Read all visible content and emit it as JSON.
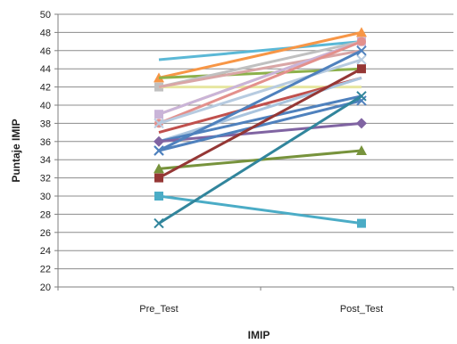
{
  "chart_data": {
    "type": "line",
    "title": "",
    "xlabel": "IMIP",
    "ylabel": "Puntaje IMIP",
    "categories": [
      "Pre_Test",
      "Post_Test"
    ],
    "ylim": [
      20,
      50
    ],
    "yticks": [
      20,
      22,
      24,
      26,
      28,
      30,
      32,
      34,
      36,
      38,
      40,
      42,
      44,
      46,
      48,
      50
    ],
    "grid": true,
    "legend": "none",
    "series": [
      {
        "values": [
          45,
          47
        ],
        "color": "#5BB8D6",
        "marker": "none"
      },
      {
        "values": [
          43,
          48
        ],
        "color": "#F79646",
        "marker": "triangle"
      },
      {
        "values": [
          43,
          44
        ],
        "color": "#8CB04A",
        "marker": "none"
      },
      {
        "values": [
          42,
          47
        ],
        "color": "#C0C0C0",
        "marker": "square"
      },
      {
        "values": [
          42,
          42
        ],
        "color": "#E6E6A0",
        "marker": "none"
      },
      {
        "values": [
          42,
          46
        ],
        "color": "#D9A6A6",
        "marker": "none"
      },
      {
        "values": [
          39,
          47
        ],
        "color": "#FAC090",
        "marker": "none"
      },
      {
        "values": [
          39,
          47
        ],
        "color": "#C9B4D8",
        "marker": "square"
      },
      {
        "values": [
          38,
          47
        ],
        "color": "#E3908C",
        "marker": "circle"
      },
      {
        "values": [
          38,
          45
        ],
        "color": "#B7CBE0",
        "marker": "x"
      },
      {
        "values": [
          37,
          43
        ],
        "color": "#C0504D",
        "marker": "none"
      },
      {
        "values": [
          36,
          43
        ],
        "color": "#A9C4DE",
        "marker": "none"
      },
      {
        "values": [
          36,
          41
        ],
        "color": "#4F81BD",
        "marker": "none"
      },
      {
        "values": [
          36,
          38
        ],
        "color": "#8064A2",
        "marker": "diamond"
      },
      {
        "values": [
          35,
          46
        ],
        "color": "#4F81BD",
        "marker": "x"
      },
      {
        "values": [
          35,
          40.5
        ],
        "color": "#4F81BD",
        "marker": "x"
      },
      {
        "values": [
          33,
          35
        ],
        "color": "#77933C",
        "marker": "triangle"
      },
      {
        "values": [
          32,
          44
        ],
        "color": "#953735",
        "marker": "square"
      },
      {
        "values": [
          30,
          27
        ],
        "color": "#4BACC6",
        "marker": "square"
      },
      {
        "values": [
          27,
          41
        ],
        "color": "#31859C",
        "marker": "x"
      }
    ]
  }
}
